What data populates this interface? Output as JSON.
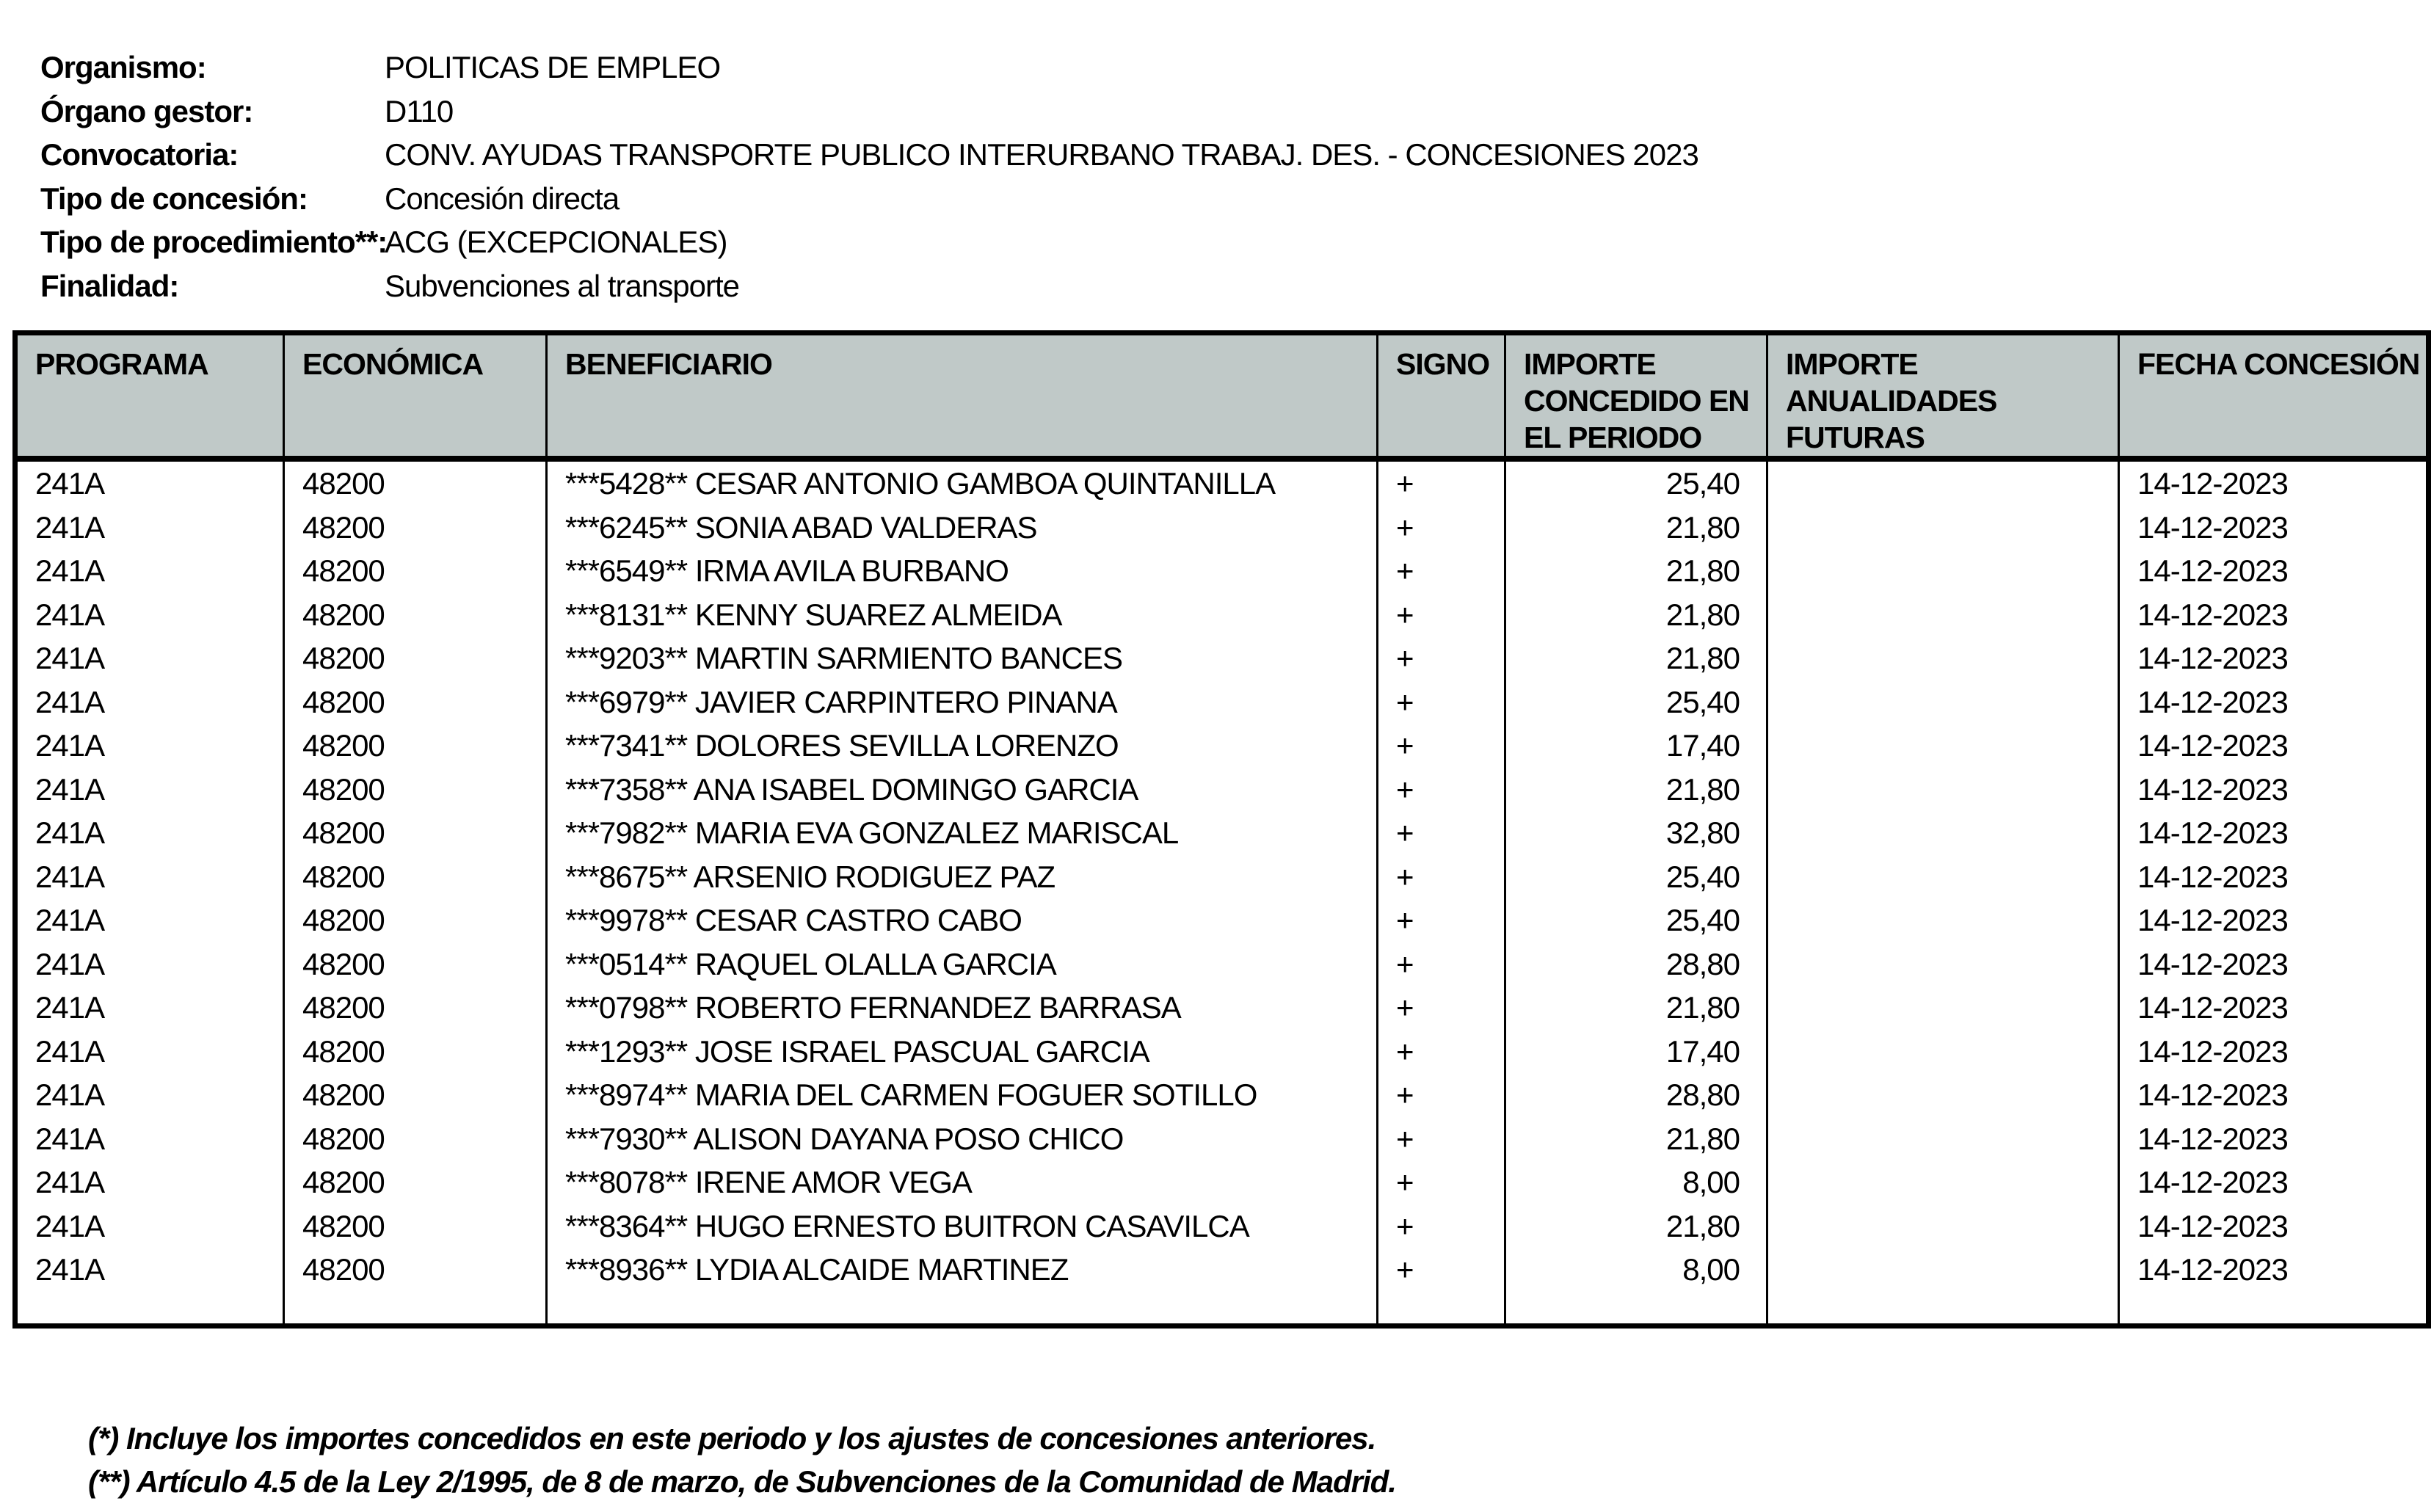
{
  "document": {
    "info_fields": [
      {
        "label": "Organismo:",
        "value": "POLITICAS DE EMPLEO"
      },
      {
        "label": "Órgano gestor:",
        "value": "D110"
      },
      {
        "label": "Convocatoria:",
        "value": "CONV. AYUDAS TRANSPORTE PUBLICO INTERURBANO TRABAJ. DES. - CONCESIONES 2023"
      },
      {
        "label": "Tipo de concesión:",
        "value": "Concesión directa"
      },
      {
        "label": "Tipo de procedimiento**:",
        "value": "ACG (EXCEPCIONALES)"
      },
      {
        "label": "Finalidad:",
        "value": "Subvenciones al transporte"
      }
    ],
    "table": {
      "columns": [
        "PROGRAMA",
        "ECONÓMICA",
        "BENEFICIARIO",
        "SIGNO",
        "IMPORTE CONCEDIDO EN EL PERIODO",
        "IMPORTE ANUALIDADES FUTURAS",
        "FECHA CONCESIÓN"
      ],
      "rows": [
        {
          "programa": "241A",
          "economica": "48200",
          "beneficiario": "***5428** CESAR ANTONIO GAMBOA QUINTANILLA",
          "signo": "+",
          "importe_concedido": "25,40",
          "importe_anualidades": "",
          "fecha_concesion": "14-12-2023"
        },
        {
          "programa": "241A",
          "economica": "48200",
          "beneficiario": "***6245** SONIA ABAD VALDERAS",
          "signo": "+",
          "importe_concedido": "21,80",
          "importe_anualidades": "",
          "fecha_concesion": "14-12-2023"
        },
        {
          "programa": "241A",
          "economica": "48200",
          "beneficiario": "***6549** IRMA AVILA BURBANO",
          "signo": "+",
          "importe_concedido": "21,80",
          "importe_anualidades": "",
          "fecha_concesion": "14-12-2023"
        },
        {
          "programa": "241A",
          "economica": "48200",
          "beneficiario": "***8131** KENNY SUAREZ ALMEIDA",
          "signo": "+",
          "importe_concedido": "21,80",
          "importe_anualidades": "",
          "fecha_concesion": "14-12-2023"
        },
        {
          "programa": "241A",
          "economica": "48200",
          "beneficiario": "***9203** MARTIN SARMIENTO BANCES",
          "signo": "+",
          "importe_concedido": "21,80",
          "importe_anualidades": "",
          "fecha_concesion": "14-12-2023"
        },
        {
          "programa": "241A",
          "economica": "48200",
          "beneficiario": "***6979** JAVIER CARPINTERO PINANA",
          "signo": "+",
          "importe_concedido": "25,40",
          "importe_anualidades": "",
          "fecha_concesion": "14-12-2023"
        },
        {
          "programa": "241A",
          "economica": "48200",
          "beneficiario": "***7341** DOLORES SEVILLA LORENZO",
          "signo": "+",
          "importe_concedido": "17,40",
          "importe_anualidades": "",
          "fecha_concesion": "14-12-2023"
        },
        {
          "programa": "241A",
          "economica": "48200",
          "beneficiario": "***7358** ANA ISABEL DOMINGO GARCIA",
          "signo": "+",
          "importe_concedido": "21,80",
          "importe_anualidades": "",
          "fecha_concesion": "14-12-2023"
        },
        {
          "programa": "241A",
          "economica": "48200",
          "beneficiario": "***7982** MARIA EVA GONZALEZ MARISCAL",
          "signo": "+",
          "importe_concedido": "32,80",
          "importe_anualidades": "",
          "fecha_concesion": "14-12-2023"
        },
        {
          "programa": "241A",
          "economica": "48200",
          "beneficiario": "***8675** ARSENIO RODIGUEZ PAZ",
          "signo": "+",
          "importe_concedido": "25,40",
          "importe_anualidades": "",
          "fecha_concesion": "14-12-2023"
        },
        {
          "programa": "241A",
          "economica": "48200",
          "beneficiario": "***9978** CESAR CASTRO CABO",
          "signo": "+",
          "importe_concedido": "25,40",
          "importe_anualidades": "",
          "fecha_concesion": "14-12-2023"
        },
        {
          "programa": "241A",
          "economica": "48200",
          "beneficiario": "***0514** RAQUEL OLALLA GARCIA",
          "signo": "+",
          "importe_concedido": "28,80",
          "importe_anualidades": "",
          "fecha_concesion": "14-12-2023"
        },
        {
          "programa": "241A",
          "economica": "48200",
          "beneficiario": "***0798** ROBERTO FERNANDEZ BARRASA",
          "signo": "+",
          "importe_concedido": "21,80",
          "importe_anualidades": "",
          "fecha_concesion": "14-12-2023"
        },
        {
          "programa": "241A",
          "economica": "48200",
          "beneficiario": "***1293** JOSE ISRAEL PASCUAL GARCIA",
          "signo": "+",
          "importe_concedido": "17,40",
          "importe_anualidades": "",
          "fecha_concesion": "14-12-2023"
        },
        {
          "programa": "241A",
          "economica": "48200",
          "beneficiario": "***8974** MARIA DEL CARMEN FOGUER SOTILLO",
          "signo": "+",
          "importe_concedido": "28,80",
          "importe_anualidades": "",
          "fecha_concesion": "14-12-2023"
        },
        {
          "programa": "241A",
          "economica": "48200",
          "beneficiario": "***7930** ALISON DAYANA POSO CHICO",
          "signo": "+",
          "importe_concedido": "21,80",
          "importe_anualidades": "",
          "fecha_concesion": "14-12-2023"
        },
        {
          "programa": "241A",
          "economica": "48200",
          "beneficiario": "***8078** IRENE AMOR VEGA",
          "signo": "+",
          "importe_concedido": "8,00",
          "importe_anualidades": "",
          "fecha_concesion": "14-12-2023"
        },
        {
          "programa": "241A",
          "economica": "48200",
          "beneficiario": "***8364** HUGO ERNESTO BUITRON CASAVILCA",
          "signo": "+",
          "importe_concedido": "21,80",
          "importe_anualidades": "",
          "fecha_concesion": "14-12-2023"
        },
        {
          "programa": "241A",
          "economica": "48200",
          "beneficiario": "***8936** LYDIA ALCAIDE MARTINEZ",
          "signo": "+",
          "importe_concedido": "8,00",
          "importe_anualidades": "",
          "fecha_concesion": "14-12-2023"
        }
      ]
    },
    "footnotes": [
      "(*) Incluye los importes concedidos en este periodo y los ajustes de concesiones anteriores.",
      "(**) Artículo 4.5 de la Ley 2/1995, de 8 de marzo, de Subvenciones de la Comunidad de Madrid."
    ],
    "colors": {
      "header_bg": "#c0c9c8",
      "border": "#000000",
      "page_bg": "#ffffff"
    }
  }
}
